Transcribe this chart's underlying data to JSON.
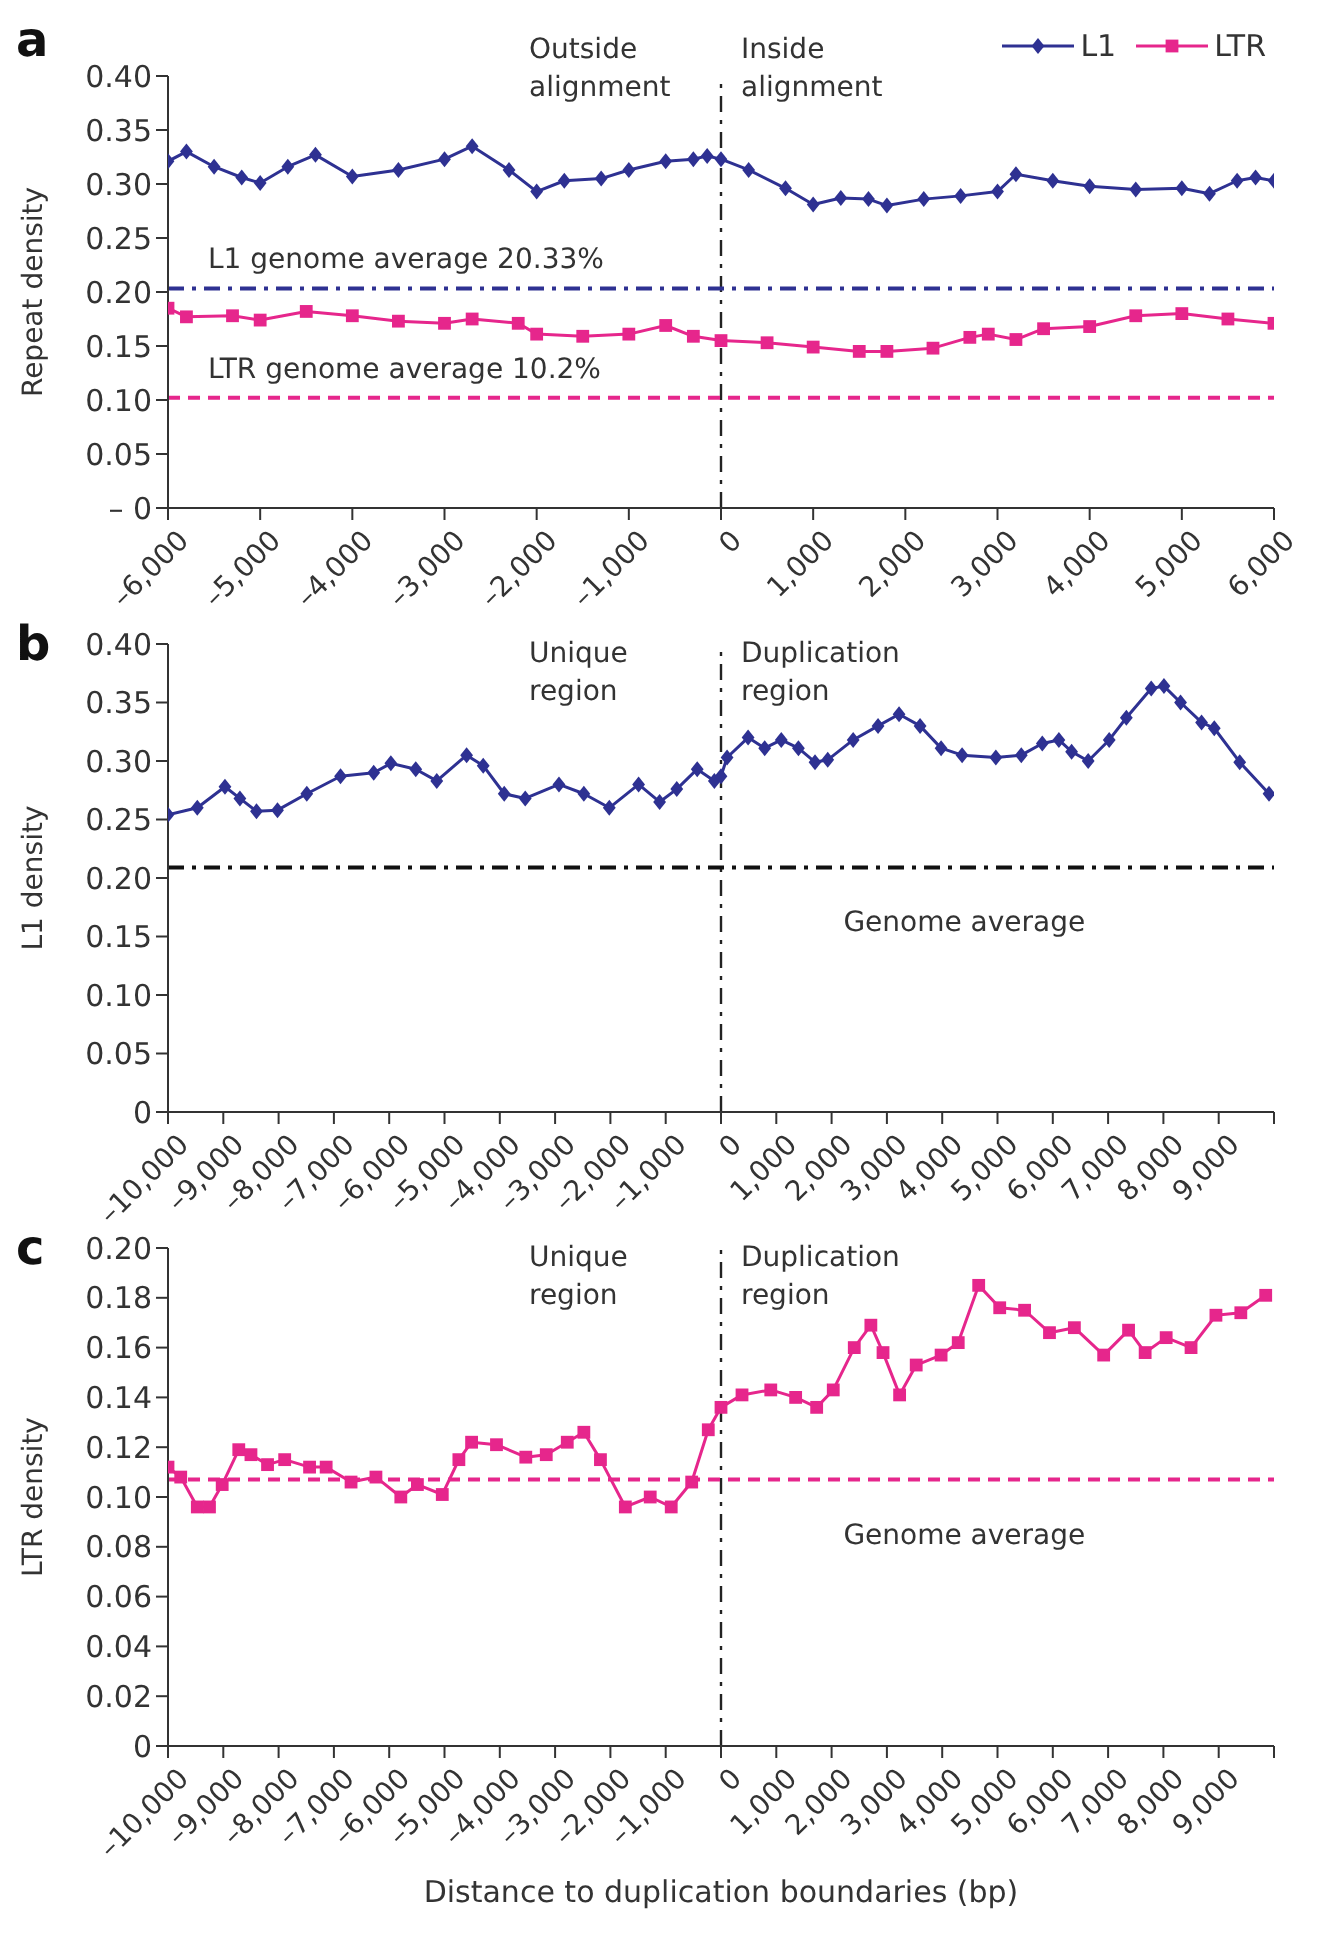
{
  "chart_data": [
    {
      "type": "line",
      "title": "a",
      "ylabel": "Repeat density",
      "annotations": [
        "Outside alignment",
        "Inside alignment"
      ],
      "legend": "top right",
      "line_style": "solid",
      "xlim": [
        -6000,
        6000
      ],
      "xticks": [
        {
          "value": -6000,
          "label": "–6,000"
        },
        {
          "value": -5000,
          "label": "–5,000"
        },
        {
          "value": -4000,
          "label": "–4,000"
        },
        {
          "value": -3000,
          "label": "–3,000"
        },
        {
          "value": -2000,
          "label": "–2,000"
        },
        {
          "value": -1000,
          "label": "–1,000"
        },
        {
          "value": 0,
          "label": "0"
        },
        {
          "value": 1000,
          "label": "1,000"
        },
        {
          "value": 2000,
          "label": "2,000"
        },
        {
          "value": 3000,
          "label": "3,000"
        },
        {
          "value": 4000,
          "label": "4,000"
        },
        {
          "value": 5000,
          "label": "5,000"
        },
        {
          "value": 6000,
          "label": "6,000"
        }
      ],
      "ylim": [
        0,
        0.4
      ],
      "yticks": [
        {
          "value": 0,
          "label": "– 0"
        },
        0.05,
        {
          "value": 0.1,
          "label": "0.10"
        },
        0.15,
        {
          "value": 0.2,
          "label": "0.20"
        },
        0.25,
        {
          "value": 0.3,
          "label": "0.30"
        },
        0.35,
        {
          "value": 0.4,
          "label": "0.40"
        }
      ],
      "ref_lines": [
        {
          "axis": "x",
          "value": 0,
          "color": "#222222",
          "line_style": "dashdot"
        },
        {
          "axis": "y",
          "value": 0.2033,
          "label": "L1 genome average 20.33%",
          "color": "#2e3192",
          "line_style": "dashdot"
        },
        {
          "axis": "y",
          "value": 0.102,
          "label": "LTR genome average 10.2%",
          "color": "#e6268c",
          "line_style": "dashed"
        }
      ],
      "series": [
        {
          "name": "L1",
          "color": "#2e3192",
          "marker": "diamond",
          "x": [
            -6000,
            -5800,
            -5500,
            -5200,
            -5000,
            -4700,
            -4400,
            -4000,
            -3500,
            -3000,
            -2700,
            -2300,
            -2000,
            -1700,
            -1300,
            -1000,
            -600,
            -300,
            -150,
            0,
            300,
            700,
            1000,
            1300,
            1600,
            1800,
            2200,
            2600,
            3000,
            3200,
            3600,
            4000,
            4500,
            5000,
            5300,
            5600,
            5800,
            6000
          ],
          "values": [
            0.321,
            0.33,
            0.316,
            0.306,
            0.301,
            0.316,
            0.327,
            0.307,
            0.313,
            0.323,
            0.335,
            0.313,
            0.293,
            0.303,
            0.305,
            0.313,
            0.321,
            0.323,
            0.326,
            0.323,
            0.313,
            0.296,
            0.281,
            0.287,
            0.286,
            0.28,
            0.286,
            0.289,
            0.293,
            0.309,
            0.303,
            0.298,
            0.295,
            0.296,
            0.291,
            0.303,
            0.306,
            0.303
          ]
        },
        {
          "name": "LTR",
          "color": "#e6268c",
          "marker": "square",
          "x": [
            -6000,
            -5800,
            -5300,
            -5000,
            -4500,
            -4000,
            -3500,
            -3000,
            -2700,
            -2200,
            -2000,
            -1500,
            -1000,
            -600,
            -300,
            0,
            500,
            1000,
            1500,
            1800,
            2300,
            2700,
            2900,
            3200,
            3500,
            4000,
            4500,
            5000,
            5500,
            6000
          ],
          "values": [
            0.185,
            0.177,
            0.178,
            0.174,
            0.182,
            0.178,
            0.173,
            0.171,
            0.175,
            0.171,
            0.161,
            0.159,
            0.161,
            0.169,
            0.159,
            0.155,
            0.153,
            0.149,
            0.145,
            0.145,
            0.148,
            0.158,
            0.161,
            0.156,
            0.166,
            0.168,
            0.178,
            0.18,
            0.175,
            0.171
          ]
        }
      ]
    },
    {
      "type": "line",
      "title": "b",
      "ylabel": "L1 density",
      "annotations": [
        "Unique region",
        "Duplication region"
      ],
      "line_style": "solid",
      "xlim": [
        -10000,
        10000
      ],
      "xticks": [
        {
          "value": -10000,
          "label": "–10,000"
        },
        {
          "value": -9000,
          "label": "–9,000"
        },
        {
          "value": -8000,
          "label": "–8,000"
        },
        {
          "value": -7000,
          "label": "–7,000"
        },
        {
          "value": -6000,
          "label": "–6,000"
        },
        {
          "value": -5000,
          "label": "–5,000"
        },
        {
          "value": -4000,
          "label": "–4,000"
        },
        {
          "value": -3000,
          "label": "–3,000"
        },
        {
          "value": -2000,
          "label": "–2,000"
        },
        {
          "value": -1000,
          "label": "–1,000"
        },
        0,
        {
          "value": 1000,
          "label": "1,000"
        },
        {
          "value": 2000,
          "label": "2,000"
        },
        {
          "value": 3000,
          "label": "3,000"
        },
        {
          "value": 4000,
          "label": "4,000"
        },
        {
          "value": 5000,
          "label": "5,000"
        },
        {
          "value": 6000,
          "label": "6,000"
        },
        {
          "value": 7000,
          "label": "7,000"
        },
        {
          "value": 8000,
          "label": "8,000"
        },
        {
          "value": 9000,
          "label": "9,000"
        },
        {
          "value": 10000,
          "label": null
        }
      ],
      "ylim": [
        0,
        0.4
      ],
      "yticks": [
        0,
        0.05,
        {
          "value": 0.1,
          "label": "0.10"
        },
        0.15,
        {
          "value": 0.2,
          "label": "0.20"
        },
        0.25,
        {
          "value": 0.3,
          "label": "0.30"
        },
        0.35,
        {
          "value": 0.4,
          "label": "0.40"
        }
      ],
      "ref_lines": [
        {
          "axis": "x",
          "value": 0,
          "color": "#222222",
          "line_style": "dashdot"
        },
        {
          "axis": "y",
          "value": 0.209,
          "label": "Genome average",
          "color": "#111111",
          "line_style": "dashdot"
        }
      ],
      "series": [
        {
          "color": "#2e3192",
          "marker": "diamond",
          "x": [
            -10000,
            -9470,
            -8970,
            -8700,
            -8400,
            -8020,
            -7490,
            -6880,
            -6280,
            -5970,
            -5520,
            -5140,
            -4600,
            -4300,
            -3920,
            -3540,
            -2930,
            -2480,
            -2020,
            -1490,
            -1110,
            -800,
            -430,
            -120,
            0,
            110,
            490,
            790,
            1090,
            1400,
            1700,
            1930,
            2390,
            2840,
            3220,
            3600,
            3980,
            4360,
            4970,
            5430,
            5810,
            6110,
            6340,
            6640,
            7020,
            7330,
            7780,
            8010,
            8310,
            8690,
            8920,
            9380,
            9910
          ],
          "values": [
            0.254,
            0.26,
            0.278,
            0.268,
            0.257,
            0.258,
            0.272,
            0.287,
            0.29,
            0.298,
            0.293,
            0.283,
            0.305,
            0.296,
            0.272,
            0.268,
            0.28,
            0.272,
            0.26,
            0.28,
            0.265,
            0.276,
            0.293,
            0.283,
            0.287,
            0.303,
            0.32,
            0.311,
            0.318,
            0.311,
            0.299,
            0.301,
            0.318,
            0.33,
            0.34,
            0.33,
            0.311,
            0.305,
            0.303,
            0.305,
            0.315,
            0.318,
            0.308,
            0.3,
            0.318,
            0.337,
            0.362,
            0.364,
            0.35,
            0.333,
            0.328,
            0.299,
            0.272
          ]
        }
      ]
    },
    {
      "type": "line",
      "title": "c",
      "xlabel": "Distance to duplication boundaries (bp)",
      "ylabel": "LTR density",
      "annotations": [
        "Unique region",
        "Duplication region"
      ],
      "line_style": "solid",
      "xlim": [
        -10000,
        10000
      ],
      "xticks": [
        {
          "value": -10000,
          "label": "–10,000"
        },
        {
          "value": -9000,
          "label": "–9,000"
        },
        {
          "value": -8000,
          "label": "–8,000"
        },
        {
          "value": -7000,
          "label": "–7,000"
        },
        {
          "value": -6000,
          "label": "–6,000"
        },
        {
          "value": -5000,
          "label": "–5,000"
        },
        {
          "value": -4000,
          "label": "–4,000"
        },
        {
          "value": -3000,
          "label": "–3,000"
        },
        {
          "value": -2000,
          "label": "–2,000"
        },
        {
          "value": -1000,
          "label": "–1,000"
        },
        0,
        {
          "value": 1000,
          "label": "1,000"
        },
        {
          "value": 2000,
          "label": "2,000"
        },
        {
          "value": 3000,
          "label": "3,000"
        },
        {
          "value": 4000,
          "label": "4,000"
        },
        {
          "value": 5000,
          "label": "5,000"
        },
        {
          "value": 6000,
          "label": "6,000"
        },
        {
          "value": 7000,
          "label": "7,000"
        },
        {
          "value": 8000,
          "label": "8,000"
        },
        {
          "value": 9000,
          "label": "9,000"
        },
        {
          "value": 10000,
          "label": null
        }
      ],
      "ylim": [
        0,
        0.2
      ],
      "yticks": [
        0,
        0.02,
        0.04,
        0.06,
        0.08,
        {
          "value": 0.1,
          "label": "0.10"
        },
        0.12,
        0.14,
        0.16,
        0.18,
        {
          "value": 0.2,
          "label": "0.20"
        }
      ],
      "ref_lines": [
        {
          "axis": "x",
          "value": 0,
          "color": "#222222",
          "line_style": "dashdot"
        },
        {
          "axis": "y",
          "value": 0.107,
          "label": "Genome average",
          "color": "#e6268c",
          "line_style": "dashed"
        }
      ],
      "series": [
        {
          "color": "#e6268c",
          "marker": "square",
          "x": [
            -10000,
            -9770,
            -9470,
            -9250,
            -9020,
            -8720,
            -8500,
            -8200,
            -7890,
            -7440,
            -7140,
            -6690,
            -6240,
            -5790,
            -5490,
            -5040,
            -4740,
            -4510,
            -4060,
            -3530,
            -3160,
            -2780,
            -2480,
            -2180,
            -1730,
            -1280,
            -900,
            -530,
            -230,
            0,
            380,
            900,
            1350,
            1730,
            2030,
            2410,
            2710,
            2930,
            3230,
            3530,
            3980,
            4290,
            4660,
            5040,
            5490,
            5940,
            6390,
            6920,
            7370,
            7670,
            8050,
            8500,
            8950,
            9400,
            9850
          ],
          "values": [
            0.112,
            0.108,
            0.096,
            0.096,
            0.105,
            0.119,
            0.117,
            0.113,
            0.115,
            0.112,
            0.112,
            0.106,
            0.108,
            0.1,
            0.105,
            0.101,
            0.115,
            0.122,
            0.121,
            0.116,
            0.117,
            0.122,
            0.126,
            0.115,
            0.096,
            0.1,
            0.096,
            0.106,
            0.127,
            0.136,
            0.141,
            0.143,
            0.14,
            0.136,
            0.143,
            0.16,
            0.169,
            0.158,
            0.141,
            0.153,
            0.157,
            0.162,
            0.185,
            0.176,
            0.175,
            0.166,
            0.168,
            0.157,
            0.167,
            0.158,
            0.164,
            0.16,
            0.173,
            0.174,
            0.181
          ]
        }
      ]
    }
  ]
}
